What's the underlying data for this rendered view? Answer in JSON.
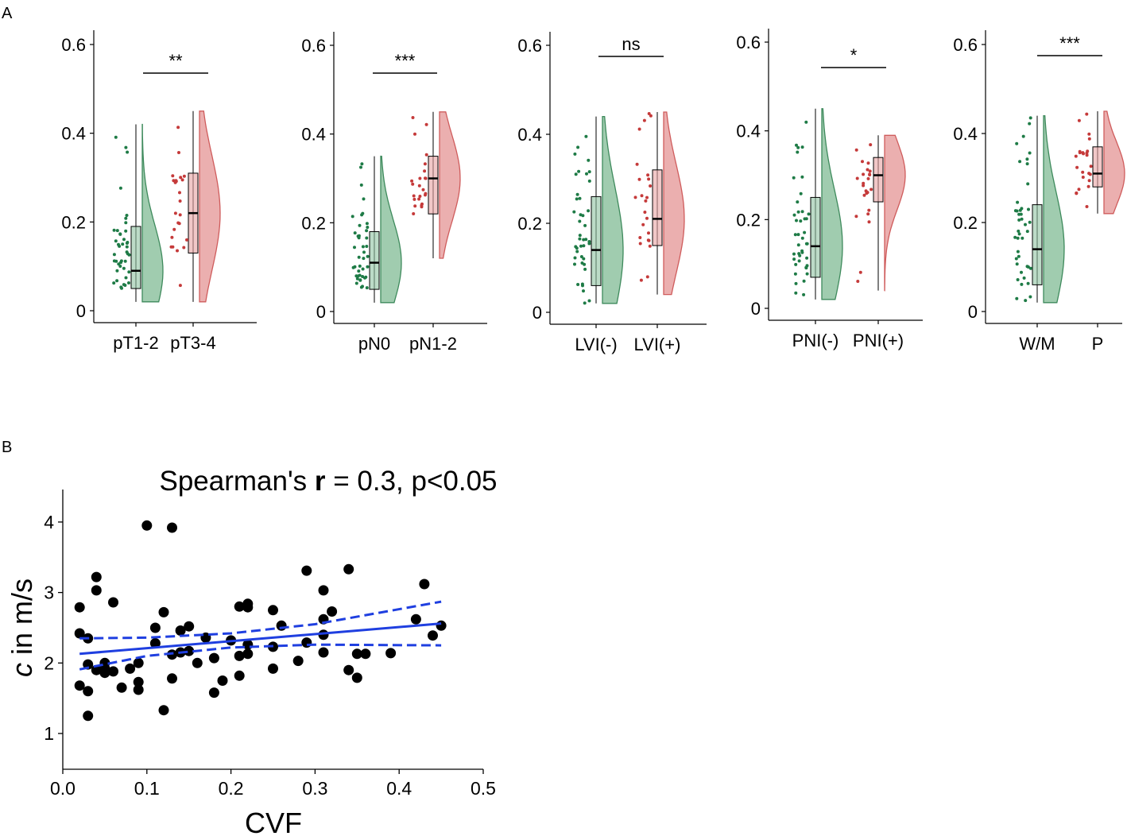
{
  "panel_labels": {
    "a": "A",
    "b": "B"
  },
  "colors": {
    "green_point": "#1e7b46",
    "green_fill": "#8fc3a1",
    "green_stroke": "#3e8a5c",
    "red_point": "#c53a3a",
    "red_fill": "#e7a1a1",
    "red_stroke": "#cf5c5c",
    "fit_line": "#1f3fe0",
    "scatter_point": "#000000"
  },
  "chart_data": [
    {
      "type": "violin-box",
      "panel": "A",
      "ylim": [
        0,
        0.6
      ],
      "yticks": [
        "0",
        "0.2",
        "0.4",
        "0.6"
      ],
      "categories": [
        "pT1-2",
        "pT3-4"
      ],
      "significance": "**",
      "groups": [
        {
          "name": "pT1-2",
          "min": 0.02,
          "q1": 0.05,
          "median": 0.09,
          "q3": 0.19,
          "max": 0.42
        },
        {
          "name": "pT3-4",
          "min": 0.02,
          "q1": 0.13,
          "median": 0.22,
          "q3": 0.31,
          "max": 0.45
        }
      ]
    },
    {
      "type": "violin-box",
      "panel": "A",
      "ylim": [
        0,
        0.6
      ],
      "yticks": [
        "0",
        "0.2",
        "0.4",
        "0.6"
      ],
      "categories": [
        "pN0",
        "pN1-2"
      ],
      "significance": "***",
      "groups": [
        {
          "name": "pN0",
          "min": 0.02,
          "q1": 0.05,
          "median": 0.11,
          "q3": 0.18,
          "max": 0.35
        },
        {
          "name": "pN1-2",
          "min": 0.12,
          "q1": 0.22,
          "median": 0.3,
          "q3": 0.35,
          "max": 0.45
        }
      ]
    },
    {
      "type": "violin-box",
      "panel": "A",
      "ylim": [
        0,
        0.6
      ],
      "yticks": [
        "0",
        "0.2",
        "0.4",
        "0.6"
      ],
      "categories": [
        "LVI(-)",
        "LVI(+)"
      ],
      "significance": "ns",
      "groups": [
        {
          "name": "LVI(-)",
          "min": 0.02,
          "q1": 0.06,
          "median": 0.14,
          "q3": 0.26,
          "max": 0.44
        },
        {
          "name": "LVI(+)",
          "min": 0.04,
          "q1": 0.15,
          "median": 0.21,
          "q3": 0.32,
          "max": 0.45
        }
      ]
    },
    {
      "type": "violin-box",
      "panel": "A",
      "ylim": [
        0,
        0.6
      ],
      "yticks": [
        "0",
        "0.2",
        "0.4",
        "0.6"
      ],
      "categories": [
        "PNI(-)",
        "PNI(+)"
      ],
      "significance": "*",
      "groups": [
        {
          "name": "PNI(-)",
          "min": 0.02,
          "q1": 0.07,
          "median": 0.14,
          "q3": 0.25,
          "max": 0.45
        },
        {
          "name": "PNI(+)",
          "min": 0.04,
          "q1": 0.24,
          "median": 0.3,
          "q3": 0.34,
          "max": 0.39
        }
      ]
    },
    {
      "type": "violin-box",
      "panel": "A",
      "ylim": [
        0,
        0.6
      ],
      "yticks": [
        "0",
        "0.2",
        "0.4",
        "0.6"
      ],
      "categories": [
        "W/M",
        "P"
      ],
      "significance": "***",
      "groups": [
        {
          "name": "W/M",
          "min": 0.02,
          "q1": 0.06,
          "median": 0.14,
          "q3": 0.24,
          "max": 0.44
        },
        {
          "name": "P",
          "min": 0.22,
          "q1": 0.28,
          "median": 0.31,
          "q3": 0.37,
          "max": 0.45
        }
      ]
    },
    {
      "type": "scatter",
      "panel": "B",
      "title_prefix": "Spearman's ",
      "title_bold": "r",
      "title_suffix": " = 0.3, p<0.05",
      "xlabel": "CVF",
      "ylabel_italic": "c",
      "ylabel_rest": " in m/s",
      "xlim": [
        0,
        0.5
      ],
      "ylim": [
        0.5,
        4.5
      ],
      "xticks": [
        "0.0",
        "0.1",
        "0.2",
        "0.3",
        "0.4",
        "0.5"
      ],
      "yticks": [
        "1",
        "2",
        "3",
        "4"
      ],
      "fit": {
        "x": [
          0.02,
          0.45
        ],
        "y": [
          2.13,
          2.56
        ]
      },
      "ci_upper": {
        "x": [
          0.02,
          0.1,
          0.2,
          0.3,
          0.45
        ],
        "y": [
          2.35,
          2.36,
          2.42,
          2.55,
          2.87
        ]
      },
      "ci_lower": {
        "x": [
          0.02,
          0.1,
          0.2,
          0.3,
          0.45
        ],
        "y": [
          1.91,
          2.1,
          2.22,
          2.26,
          2.25
        ]
      },
      "points": [
        [
          0.1,
          3.95
        ],
        [
          0.13,
          3.92
        ],
        [
          0.04,
          3.22
        ],
        [
          0.04,
          3.03
        ],
        [
          0.06,
          2.86
        ],
        [
          0.02,
          2.79
        ],
        [
          0.02,
          2.42
        ],
        [
          0.03,
          2.35
        ],
        [
          0.03,
          1.98
        ],
        [
          0.04,
          1.9
        ],
        [
          0.05,
          1.86
        ],
        [
          0.05,
          2.0
        ],
        [
          0.05,
          1.92
        ],
        [
          0.06,
          1.88
        ],
        [
          0.02,
          1.68
        ],
        [
          0.03,
          1.6
        ],
        [
          0.03,
          1.25
        ],
        [
          0.07,
          1.65
        ],
        [
          0.08,
          1.92
        ],
        [
          0.09,
          2.0
        ],
        [
          0.09,
          1.73
        ],
        [
          0.09,
          1.62
        ],
        [
          0.11,
          2.5
        ],
        [
          0.11,
          2.28
        ],
        [
          0.12,
          2.72
        ],
        [
          0.12,
          1.33
        ],
        [
          0.13,
          2.12
        ],
        [
          0.13,
          1.78
        ],
        [
          0.14,
          2.46
        ],
        [
          0.14,
          2.15
        ],
        [
          0.15,
          2.52
        ],
        [
          0.15,
          2.17
        ],
        [
          0.16,
          2.0
        ],
        [
          0.17,
          2.36
        ],
        [
          0.18,
          2.07
        ],
        [
          0.18,
          1.58
        ],
        [
          0.19,
          1.75
        ],
        [
          0.2,
          2.32
        ],
        [
          0.21,
          2.8
        ],
        [
          0.21,
          2.1
        ],
        [
          0.21,
          1.82
        ],
        [
          0.22,
          2.84
        ],
        [
          0.22,
          2.79
        ],
        [
          0.22,
          2.26
        ],
        [
          0.22,
          2.13
        ],
        [
          0.25,
          2.75
        ],
        [
          0.25,
          2.23
        ],
        [
          0.25,
          1.92
        ],
        [
          0.26,
          2.53
        ],
        [
          0.28,
          2.03
        ],
        [
          0.29,
          3.31
        ],
        [
          0.29,
          2.29
        ],
        [
          0.31,
          3.03
        ],
        [
          0.31,
          2.62
        ],
        [
          0.31,
          2.4
        ],
        [
          0.31,
          2.15
        ],
        [
          0.32,
          2.73
        ],
        [
          0.34,
          3.33
        ],
        [
          0.34,
          1.9
        ],
        [
          0.35,
          1.79
        ],
        [
          0.35,
          2.13
        ],
        [
          0.36,
          2.13
        ],
        [
          0.39,
          2.14
        ],
        [
          0.42,
          2.62
        ],
        [
          0.43,
          3.12
        ],
        [
          0.44,
          2.39
        ],
        [
          0.45,
          2.53
        ]
      ]
    }
  ]
}
